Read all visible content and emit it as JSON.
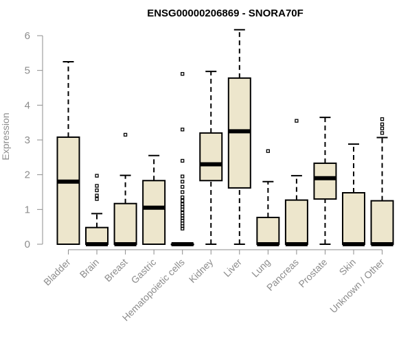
{
  "chart_data": {
    "type": "boxplot",
    "title": "ENSG00000206869 - SNORA70F",
    "xlabel": "",
    "ylabel": "Expression",
    "ylim": [
      0,
      6
    ],
    "yticks": [
      0,
      1,
      2,
      3,
      4,
      5,
      6
    ],
    "categories": [
      "Bladder",
      "Brain",
      "Breast",
      "Gastric",
      "Hematopoietic cells",
      "Kidney",
      "Liver",
      "Lung",
      "Pancreas",
      "Prostate",
      "Skin",
      "Unknown / Other"
    ],
    "boxes": [
      {
        "name": "Bladder",
        "min": 0,
        "q1": 0,
        "median": 1.8,
        "q3": 3.08,
        "max": 5.25,
        "outliers": []
      },
      {
        "name": "Brain",
        "min": 0,
        "q1": 0,
        "median": 0,
        "q3": 0.48,
        "max": 0.88,
        "outliers": [
          1.3,
          1.4,
          1.55,
          1.68,
          1.97
        ]
      },
      {
        "name": "Breast",
        "min": 0,
        "q1": 0,
        "median": 0,
        "q3": 1.17,
        "max": 1.98,
        "outliers": [
          3.15
        ]
      },
      {
        "name": "Gastric",
        "min": 0,
        "q1": 0,
        "median": 1.05,
        "q3": 1.83,
        "max": 2.55,
        "outliers": []
      },
      {
        "name": "Hematopoietic cells",
        "min": 0,
        "q1": 0,
        "median": 0,
        "q3": 0,
        "max": 0,
        "outliers": [
          0.45,
          0.52,
          0.6,
          0.68,
          0.75,
          0.82,
          0.9,
          1.0,
          1.08,
          1.15,
          1.25,
          1.35,
          1.5,
          1.65,
          1.8,
          1.95,
          2.4,
          3.3,
          4.9
        ]
      },
      {
        "name": "Kidney",
        "min": 0,
        "q1": 1.83,
        "median": 2.3,
        "q3": 3.2,
        "max": 4.97,
        "outliers": []
      },
      {
        "name": "Liver",
        "min": 0,
        "q1": 1.62,
        "median": 3.25,
        "q3": 4.78,
        "max": 6.17,
        "outliers": []
      },
      {
        "name": "Lung",
        "min": 0,
        "q1": 0,
        "median": 0,
        "q3": 0.77,
        "max": 1.8,
        "outliers": [
          2.68
        ]
      },
      {
        "name": "Pancreas",
        "min": 0,
        "q1": 0,
        "median": 0,
        "q3": 1.27,
        "max": 1.97,
        "outliers": [
          3.55
        ]
      },
      {
        "name": "Prostate",
        "min": 0,
        "q1": 1.3,
        "median": 1.9,
        "q3": 2.33,
        "max": 3.65,
        "outliers": []
      },
      {
        "name": "Skin",
        "min": 0,
        "q1": 0,
        "median": 0,
        "q3": 1.48,
        "max": 2.88,
        "outliers": []
      },
      {
        "name": "Unknown / Other",
        "min": 0,
        "q1": 0,
        "median": 0,
        "q3": 1.25,
        "max": 3.07,
        "outliers": [
          3.2,
          3.33,
          3.45,
          3.6
        ]
      }
    ],
    "colors": {
      "box_fill": "#ede6cc",
      "box_stroke": "#000000",
      "axis": "#8c8c8c"
    }
  }
}
